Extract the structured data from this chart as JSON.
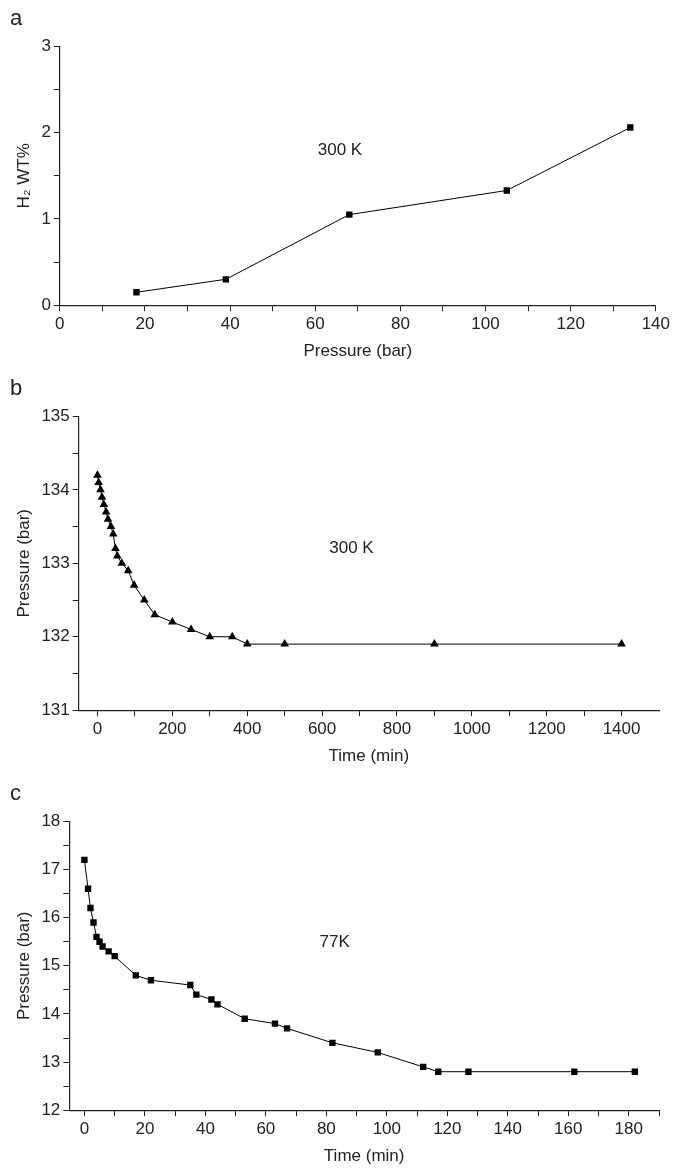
{
  "chart_data": [
    {
      "type": "line",
      "title": "a",
      "xlabel": "Pressure (bar)",
      "ylabel": "H₂ WT%",
      "annotations": [
        "300 K"
      ],
      "marker": "square",
      "line_style": "solid",
      "x": [
        18,
        39,
        68,
        105,
        134
      ],
      "series": [
        {
          "color": "#000000",
          "values": [
            0.15,
            0.3,
            1.05,
            1.33,
            2.06
          ]
        }
      ],
      "xlim": [
        0,
        140
      ],
      "xticks": [
        0,
        {
          "value": 10,
          "label": null
        },
        20,
        {
          "value": 30,
          "label": null
        },
        40,
        {
          "value": 50,
          "label": null
        },
        60,
        {
          "value": 70,
          "label": null
        },
        80,
        {
          "value": 90,
          "label": null
        },
        100,
        {
          "value": 110,
          "label": null
        },
        120,
        {
          "value": 130,
          "label": null
        },
        140
      ],
      "ylim": [
        0,
        3
      ],
      "yticks": [
        0,
        {
          "value": 0.5,
          "label": null
        },
        1,
        {
          "value": 1.5,
          "label": null
        },
        2,
        {
          "value": 2.5,
          "label": null
        },
        3
      ]
    },
    {
      "type": "line",
      "title": "b",
      "xlabel": "Time (min)",
      "ylabel": "Pressure (bar)",
      "annotations": [
        "300 K"
      ],
      "marker": "triangle",
      "line_style": "solid",
      "x": [
        0,
        3,
        8,
        12,
        17,
        23,
        28,
        36,
        42,
        48,
        53,
        65,
        82,
        98,
        125,
        153,
        200,
        250,
        300,
        360,
        400,
        500,
        900,
        1400
      ],
      "series": [
        {
          "color": "#000000",
          "values": [
            134.2,
            134.1,
            134.0,
            133.9,
            133.8,
            133.7,
            133.6,
            133.5,
            133.4,
            133.2,
            133.1,
            133.0,
            132.9,
            132.7,
            132.5,
            132.3,
            132.2,
            132.1,
            132.0,
            132.0,
            131.9,
            131.9,
            131.9,
            131.9
          ]
        }
      ],
      "xlim": [
        -50,
        1500
      ],
      "xticks": [
        0,
        {
          "value": 100,
          "label": null
        },
        200,
        {
          "value": 300,
          "label": null
        },
        400,
        {
          "value": 500,
          "label": null
        },
        600,
        {
          "value": 700,
          "label": null
        },
        800,
        {
          "value": 900,
          "label": null
        },
        1000,
        {
          "value": 1100,
          "label": null
        },
        1200,
        {
          "value": 1300,
          "label": null
        },
        1400
      ],
      "ylim": [
        131,
        135
      ],
      "yticks": [
        131,
        {
          "value": 131.5,
          "label": null
        },
        132,
        {
          "value": 132.5,
          "label": null
        },
        133,
        {
          "value": 133.5,
          "label": null
        },
        134,
        {
          "value": 134.5,
          "label": null
        },
        135
      ]
    },
    {
      "type": "line",
      "title": "c",
      "xlabel": "Time (min)",
      "ylabel": "Pressure (bar)",
      "annotations": [
        "77K"
      ],
      "marker": "square",
      "line_style": "solid",
      "x": [
        0,
        1.2,
        2,
        3,
        4,
        5,
        6,
        8,
        10,
        17,
        22,
        35,
        37,
        42,
        44,
        53,
        63,
        67,
        82,
        97,
        112,
        117,
        127,
        162,
        182
      ],
      "series": [
        {
          "color": "#000000",
          "values": [
            17.2,
            16.6,
            16.2,
            15.9,
            15.6,
            15.5,
            15.4,
            15.3,
            15.2,
            14.8,
            14.7,
            14.6,
            14.4,
            14.3,
            14.2,
            13.9,
            13.8,
            13.7,
            13.4,
            13.2,
            12.9,
            12.8,
            12.8,
            12.8,
            12.8
          ]
        }
      ],
      "xlim": [
        -5,
        190
      ],
      "xticks": [
        0,
        {
          "value": 10,
          "label": null
        },
        20,
        {
          "value": 30,
          "label": null
        },
        40,
        {
          "value": 50,
          "label": null
        },
        60,
        {
          "value": 70,
          "label": null
        },
        80,
        {
          "value": 90,
          "label": null
        },
        100,
        {
          "value": 110,
          "label": null
        },
        120,
        {
          "value": 130,
          "label": null
        },
        140,
        {
          "value": 150,
          "label": null
        },
        160,
        {
          "value": 170,
          "label": null
        },
        180,
        {
          "value": 190,
          "label": null
        }
      ],
      "ylim": [
        12,
        18
      ],
      "yticks": [
        12,
        {
          "value": 12.5,
          "label": null
        },
        13,
        {
          "value": 13.5,
          "label": null
        },
        14,
        {
          "value": 14.5,
          "label": null
        },
        15,
        {
          "value": 15.5,
          "label": null
        },
        16,
        {
          "value": 16.5,
          "label": null
        },
        17,
        {
          "value": 17.5,
          "label": null
        },
        18
      ]
    }
  ]
}
